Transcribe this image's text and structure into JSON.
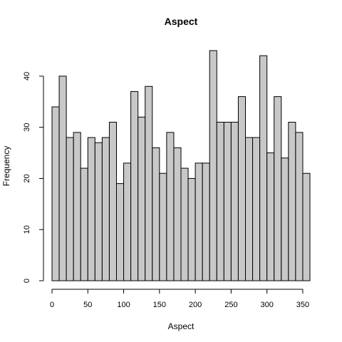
{
  "chart_data": {
    "type": "bar",
    "title": "Aspect",
    "xlabel": "Aspect",
    "ylabel": "Frequency",
    "bin_width": 10,
    "bin_edges_start": 0,
    "values": [
      34,
      40,
      28,
      29,
      22,
      28,
      27,
      28,
      31,
      19,
      23,
      37,
      32,
      38,
      26,
      21,
      29,
      26,
      22,
      20,
      23,
      23,
      45,
      31,
      31,
      31,
      36,
      28,
      28,
      44,
      25,
      36,
      24,
      31,
      29,
      21
    ],
    "xlim": [
      0,
      360
    ],
    "ylim": [
      0,
      45
    ],
    "x_ticks": [
      0,
      50,
      100,
      150,
      200,
      250,
      300,
      350
    ],
    "y_ticks": [
      0,
      10,
      20,
      30,
      40
    ],
    "grid": false,
    "bar_color": "#c8c8c8",
    "edge_color": "#000000"
  }
}
